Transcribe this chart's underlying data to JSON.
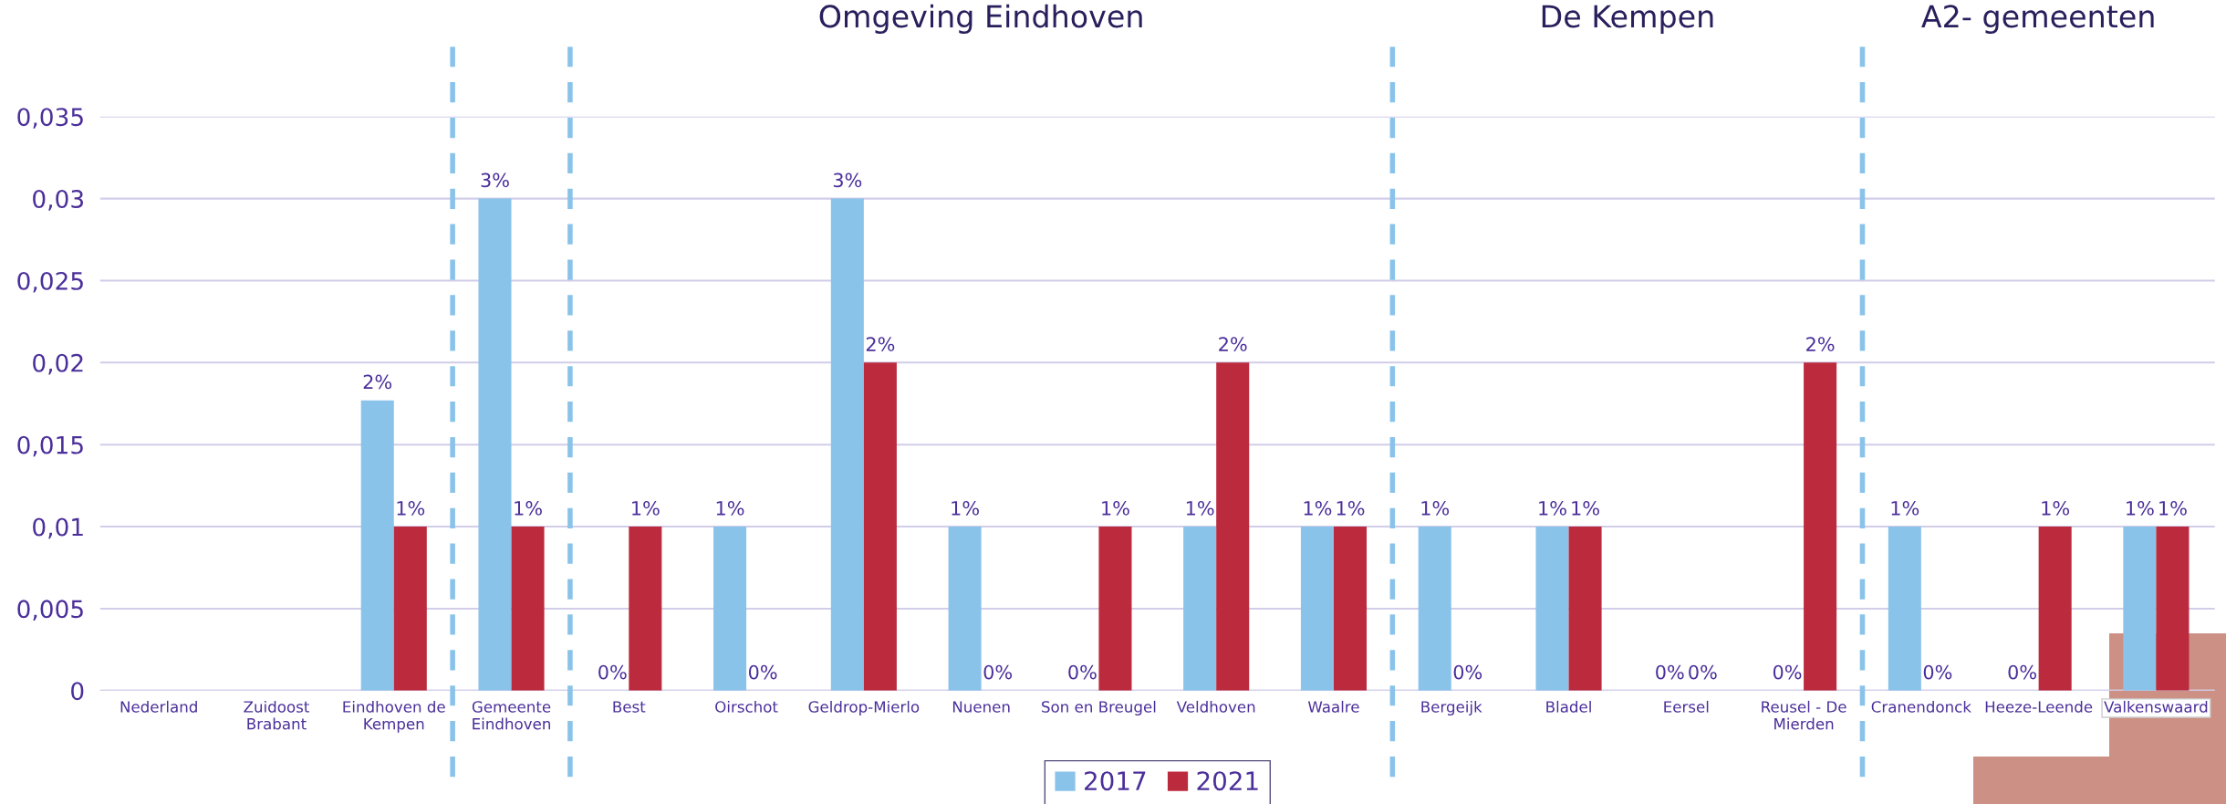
{
  "chart_data": {
    "type": "bar",
    "categories": [
      "Nederland",
      "Zuidoost\nBrabant",
      "Eindhoven de\nKempen",
      "Gemeente\nEindhoven",
      "Best",
      "Oirschot",
      "Geldrop-Mierlo",
      "Nuenen",
      "Son en Breugel",
      "Veldhoven",
      "Waalre",
      "Bergeijk",
      "Bladel",
      "Eersel",
      "Reusel - De\nMierden",
      "Cranendonck",
      "Heeze-Leende",
      "Valkenswaard"
    ],
    "series": [
      {
        "name": "2017",
        "color": "#8ac3ea",
        "values": [
          null,
          null,
          0.0177,
          0.03,
          0,
          0.01,
          0.03,
          0.01,
          0,
          0.01,
          0.01,
          0.01,
          0.01,
          0,
          0,
          0.01,
          0,
          0.01
        ],
        "value_labels": [
          null,
          null,
          "2%",
          "3%",
          "0%",
          "1%",
          "3%",
          "1%",
          "0%",
          "1%",
          "1%",
          "1%",
          "1%",
          "0%",
          "0%",
          "1%",
          "0%",
          "1%"
        ]
      },
      {
        "name": "2021",
        "color": "#bc2b3d",
        "values": [
          null,
          null,
          0.01,
          0.01,
          0.01,
          0,
          0.02,
          0,
          0.01,
          0.02,
          0.01,
          0,
          0.01,
          0,
          0.02,
          0,
          0.01,
          0.01
        ],
        "value_labels": [
          null,
          null,
          "1%",
          "1%",
          "1%",
          "0%",
          "2%",
          "0%",
          "1%",
          "2%",
          "1%",
          "0%",
          "1%",
          "0%",
          "2%",
          "0%",
          "1%",
          "1%"
        ]
      }
    ],
    "ylim": [
      0,
      0.035
    ],
    "yticks": [
      {
        "value": 0,
        "label": "0"
      },
      {
        "value": 0.005,
        "label": "0,005"
      },
      {
        "value": 0.01,
        "label": "0,01"
      },
      {
        "value": 0.015,
        "label": "0,015"
      },
      {
        "value": 0.02,
        "label": "0,02"
      },
      {
        "value": 0.025,
        "label": "0,025"
      },
      {
        "value": 0.03,
        "label": "0,03"
      },
      {
        "value": 0.035,
        "label": "0,035"
      }
    ],
    "grid": "y",
    "legend": "bottom",
    "annotations": [
      "Omgeving Eindhoven",
      "De Kempen",
      "A2- gemeenten"
    ]
  }
}
